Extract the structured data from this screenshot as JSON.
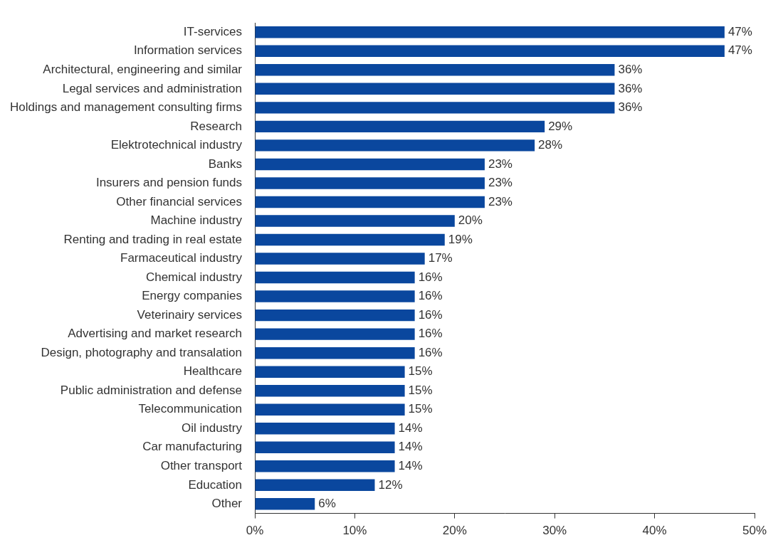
{
  "chart_data": {
    "type": "bar",
    "orientation": "horizontal",
    "categories": [
      "IT-services",
      "Information services",
      "Architectural, engineering and similar",
      "Legal services and administration",
      "Holdings and management consulting firms",
      "Research",
      "Elektrotechnical industry",
      "Banks",
      "Insurers and pension funds",
      "Other financial services",
      "Machine industry",
      "Renting and trading in real estate",
      "Farmaceutical industry",
      "Chemical industry",
      "Energy companies",
      "Veterinairy services",
      "Advertising and market research",
      "Design, photography and transalation",
      "Healthcare",
      "Public administration and defense",
      "Telecommunication",
      "Oil industry",
      "Car manufacturing",
      "Other transport",
      "Education",
      "Other"
    ],
    "values": [
      47,
      47,
      36,
      36,
      36,
      29,
      28,
      23,
      23,
      23,
      20,
      19,
      17,
      16,
      16,
      16,
      16,
      16,
      15,
      15,
      15,
      14,
      14,
      14,
      12,
      6
    ],
    "value_labels": [
      "47%",
      "47%",
      "36%",
      "36%",
      "36%",
      "29%",
      "28%",
      "23%",
      "23%",
      "23%",
      "20%",
      "19%",
      "17%",
      "16%",
      "16%",
      "16%",
      "16%",
      "16%",
      "15%",
      "15%",
      "15%",
      "14%",
      "14%",
      "14%",
      "12%",
      "6%"
    ],
    "color": "#0a479e",
    "xlim": [
      0,
      50
    ],
    "xticks": [
      {
        "value": 0,
        "label": "0%"
      },
      {
        "value": 10,
        "label": "10%"
      },
      {
        "value": 20,
        "label": "20%"
      },
      {
        "value": 30,
        "label": "30%"
      },
      {
        "value": 40,
        "label": "40%"
      },
      {
        "value": 50,
        "label": "50%"
      }
    ],
    "grid": false,
    "data_labels": true
  }
}
